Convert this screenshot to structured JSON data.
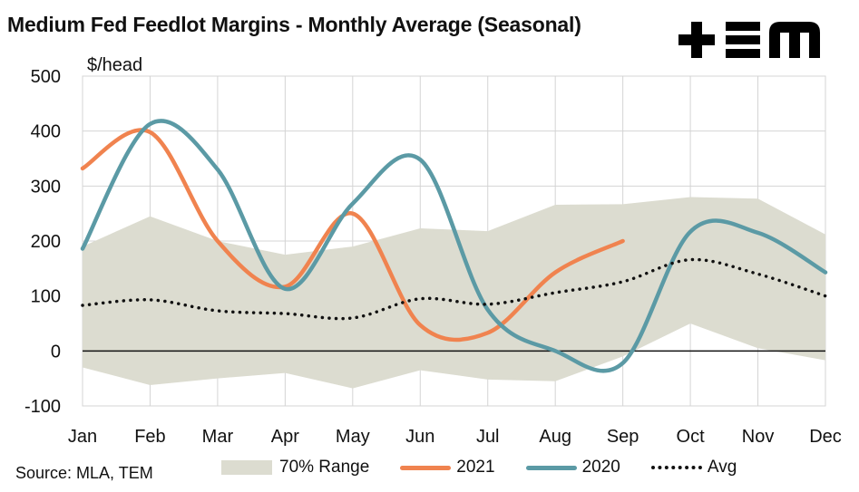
{
  "chart_data": {
    "type": "line",
    "title": "Medium Fed Feedlot Margins - Monthly Average (Seasonal)",
    "ylabel": "$/head",
    "xlabel": "",
    "categories": [
      "Jan",
      "Feb",
      "Mar",
      "Apr",
      "May",
      "Jun",
      "Jul",
      "Aug",
      "Sep",
      "Oct",
      "Nov",
      "Dec"
    ],
    "ylim": [
      -100,
      500
    ],
    "yticks": [
      500,
      400,
      300,
      200,
      100,
      0,
      -100
    ],
    "grid": true,
    "legend_position": "bottom",
    "range": {
      "name": "70% Range",
      "upper": [
        190,
        245,
        200,
        175,
        190,
        223,
        218,
        266,
        267,
        280,
        277,
        212
      ],
      "lower": [
        -30,
        -62,
        -50,
        -40,
        -68,
        -35,
        -52,
        -55,
        -10,
        50,
        5,
        -17
      ],
      "color": "#dcdcd0"
    },
    "series": [
      {
        "name": "2021",
        "color": "#f0834f",
        "style": "solid",
        "values": [
          332,
          398,
          200,
          117,
          250,
          47,
          33,
          143,
          200,
          null,
          null,
          null
        ]
      },
      {
        "name": "2020",
        "color": "#5b9aa5",
        "style": "solid",
        "values": [
          186,
          413,
          330,
          113,
          268,
          348,
          75,
          0,
          -22,
          217,
          215,
          143
        ]
      },
      {
        "name": "Avg",
        "color": "#111111",
        "style": "dotted",
        "values": [
          83,
          93,
          73,
          68,
          60,
          95,
          85,
          106,
          126,
          166,
          140,
          100
        ]
      }
    ]
  },
  "source": "Source: MLA, TEM",
  "logo": "+TEM",
  "legend": [
    "70% Range",
    "2021",
    "2020",
    "Avg"
  ]
}
